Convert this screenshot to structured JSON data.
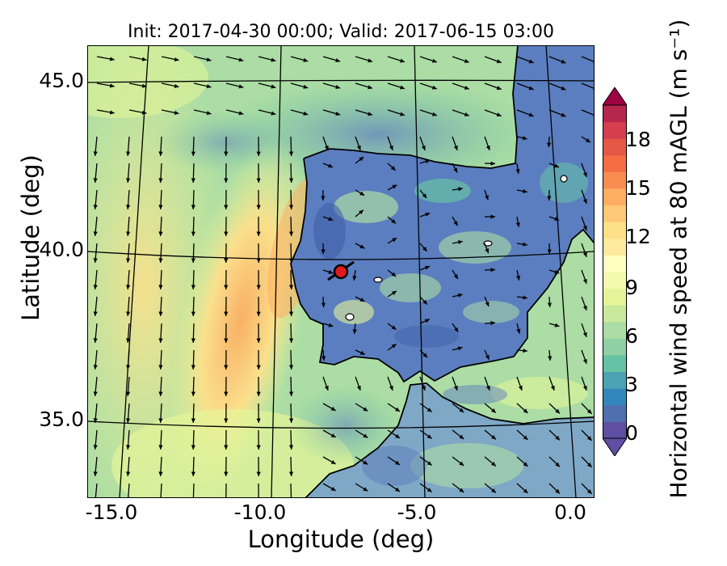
{
  "figure": {
    "title": "Init: 2017-04-30 00:00; Valid: 2017-06-15 03:00",
    "xlabel": "Longitude (deg)",
    "ylabel": "Latitude (deg)",
    "colorbar_label": "Horizontal wind speed at 80 mAGL (m s⁻¹)"
  },
  "axes": {
    "x_ticks": [
      "-15.0",
      "-10.0",
      "-5.0",
      "0.0"
    ],
    "y_ticks": [
      "45.0",
      "40.0",
      "35.0"
    ],
    "colorbar_ticks": [
      "0",
      "3",
      "6",
      "9",
      "12",
      "15",
      "18"
    ]
  },
  "chart_data": {
    "type": "heatmap",
    "title": "Init: 2017-04-30 00:00; Valid: 2017-06-15 03:00",
    "xlabel": "Longitude (deg)",
    "ylabel": "Latitude (deg)",
    "xlim": [
      -16,
      0.2
    ],
    "ylim": [
      32.8,
      46.0
    ],
    "colorbar_range": [
      0,
      20
    ],
    "colorbar_ticks": [
      0,
      3,
      6,
      9,
      12,
      15,
      18
    ],
    "colormap": "Spectral_r",
    "grid": true,
    "marker": {
      "lon": -7.7,
      "lat": 39.3,
      "color": "#e31a1c"
    },
    "colors": {
      "land_low": "#4f6fb0",
      "sea_mid": "#a8d89f",
      "jet_high": "#fdae61",
      "marker": "#e31a1c"
    }
  }
}
